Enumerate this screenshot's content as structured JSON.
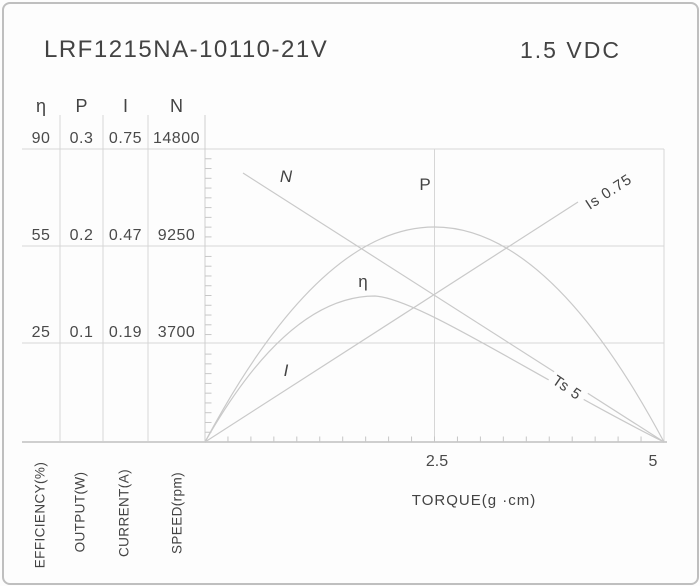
{
  "header": {
    "title": "LRF1215NA-10110-21V",
    "voltage": "1.5 VDC"
  },
  "scale_table": {
    "headers": [
      "η",
      "P",
      "I",
      "N"
    ],
    "rows": [
      [
        "90",
        "0.3",
        "0.75",
        "14800"
      ],
      [
        "55",
        "0.2",
        "0.47",
        "9250"
      ],
      [
        "25",
        "0.1",
        "0.19",
        "3700"
      ]
    ],
    "axis_captions": [
      "EFFICIENCY(%)",
      "OUTPUT(W)",
      "CURRENT(A)",
      "SPEED(rpm)"
    ]
  },
  "x_axis": {
    "label": "TORQUE(g ·cm)",
    "tick_labels": [
      "2.5",
      "5"
    ]
  },
  "curve_labels": {
    "speed": "N",
    "power": "P",
    "efficiency": "η",
    "current": "I",
    "stall_current": "Is 0.75",
    "stall_torque": "Ts 5"
  },
  "colors": {
    "line_work": "#d6d6d6",
    "axis": "#cfcfcf",
    "tick": "#c6c6c6",
    "curve": "#c9c9c9",
    "text": "#434343",
    "border": "#bfbfbf"
  },
  "chart_data": {
    "type": "line",
    "title": "LRF1215NA-10110-21V motor performance curves at 1.5 VDC",
    "xlabel": "TORQUE(g ·cm)",
    "xlim": [
      0,
      5
    ],
    "x_major_ticks": [
      2.5,
      5
    ],
    "x_minor_tick_step": 0.25,
    "grid": true,
    "legend_position": "inline curve labels",
    "left_scales_at_gridlines": {
      "efficiency_pct": [
        90,
        55,
        25
      ],
      "output_w": [
        0.3,
        0.2,
        0.1
      ],
      "current_a": [
        0.75,
        0.47,
        0.19
      ],
      "speed_rpm": [
        14800,
        9250,
        3700
      ]
    },
    "stall_torque_gcm": 5,
    "stall_current_a": 0.75,
    "series": [
      {
        "name": "N",
        "quantity": "speed",
        "unit": "rpm",
        "shape": "straight",
        "points": [
          {
            "x": 0,
            "y": 14800
          },
          {
            "x": 5,
            "y": 0
          }
        ]
      },
      {
        "name": "I",
        "quantity": "current",
        "unit": "A",
        "shape": "straight",
        "points": [
          {
            "x": 0,
            "y": 0
          },
          {
            "x": 5,
            "y": 0.75
          }
        ],
        "annotation": "Is 0.75"
      },
      {
        "name": "P",
        "quantity": "output power",
        "unit": "W",
        "shape": "parabola",
        "points": [
          {
            "x": 0,
            "y": 0
          },
          {
            "x": 2.5,
            "y": 0.22
          },
          {
            "x": 5,
            "y": 0
          }
        ]
      },
      {
        "name": "η",
        "quantity": "efficiency",
        "unit": "%",
        "shape": "skewed arc",
        "points": [
          {
            "x": 0,
            "y": 0
          },
          {
            "x": 1.85,
            "y": 40
          },
          {
            "x": 5,
            "y": 0
          }
        ],
        "annotation": "Ts 5"
      }
    ]
  }
}
